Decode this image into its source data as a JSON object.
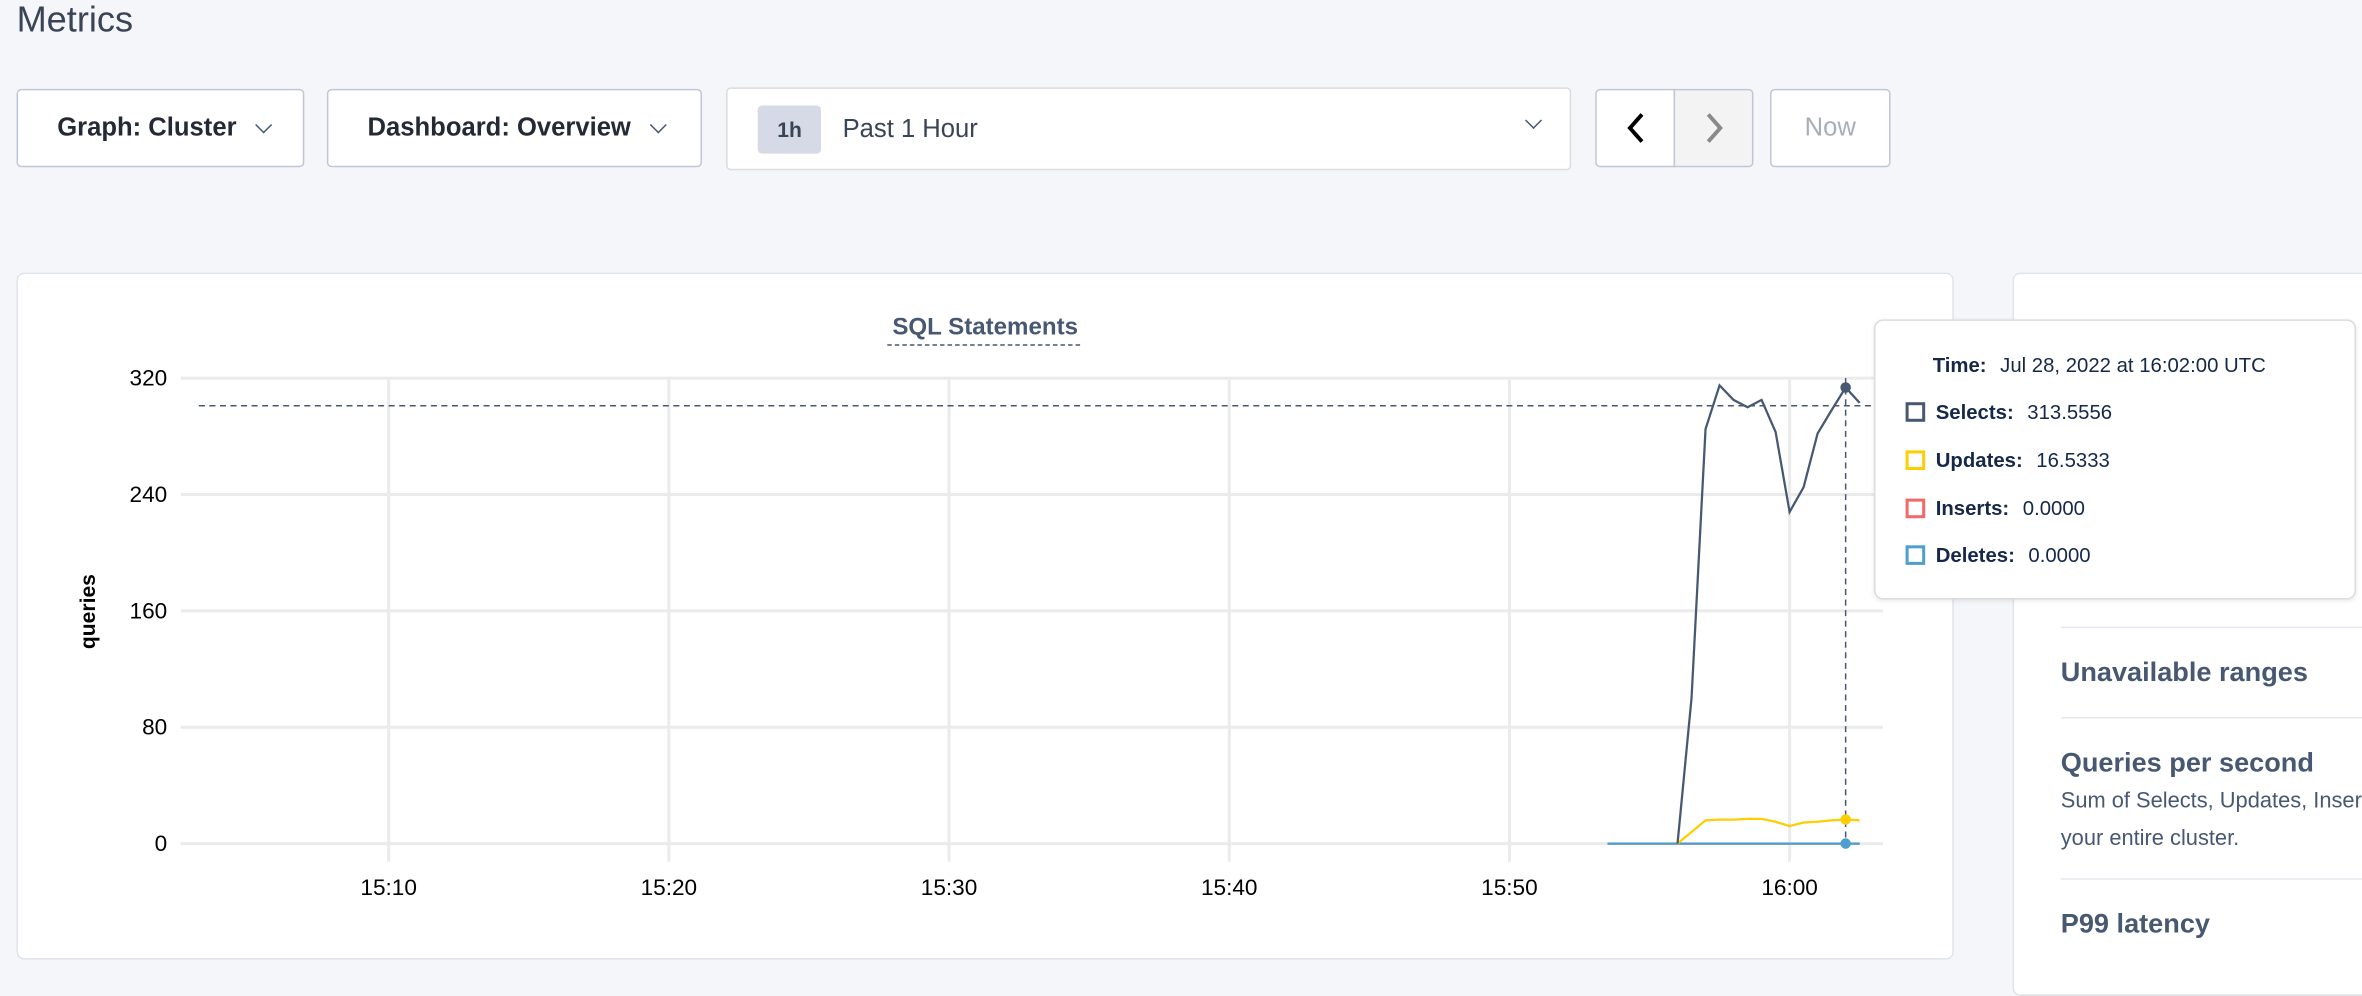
{
  "page": {
    "title": "Metrics"
  },
  "toolbar": {
    "graph_label": "Graph: Cluster",
    "dashboard_label": "Dashboard: Overview",
    "time_badge": "1h",
    "time_label": "Past 1 Hour",
    "prev_icon": "chevron-left-icon",
    "next_icon": "chevron-right-icon",
    "now_label": "Now"
  },
  "chart_data": {
    "type": "line",
    "title": "SQL Statements",
    "ylabel": "queries",
    "xlabel": "",
    "ylim": [
      0,
      320
    ],
    "yticks": [
      "0",
      "80",
      "160",
      "240",
      "320"
    ],
    "xticks": [
      "15:10",
      "15:20",
      "15:30",
      "15:40",
      "15:50",
      "16:00"
    ],
    "grid": true,
    "x": [
      "15:56:00",
      "15:56:30",
      "15:57:00",
      "15:57:30",
      "15:58:00",
      "15:58:30",
      "15:59:00",
      "15:59:30",
      "16:00:00",
      "16:00:30",
      "16:01:00",
      "16:01:30",
      "16:02:00",
      "16:02:30"
    ],
    "series": [
      {
        "name": "Selects",
        "color": "#475872",
        "values": [
          0,
          100,
          285,
          315,
          305,
          300,
          305,
          283,
          228,
          245,
          282,
          298,
          313.5556,
          303
        ]
      },
      {
        "name": "Updates",
        "color": "#ffcd02",
        "values": [
          0,
          8,
          16,
          16.5,
          16.5,
          17,
          17,
          15,
          12,
          14.5,
          15,
          16,
          16.5333,
          16
        ]
      },
      {
        "name": "Inserts",
        "color": "#f16969",
        "values": [
          0,
          0,
          0,
          0,
          0,
          0,
          0,
          0,
          0,
          0,
          0,
          0,
          0,
          0
        ]
      },
      {
        "name": "Deletes",
        "color": "#4e9fd1",
        "values": [
          0,
          0,
          0,
          0,
          0,
          0,
          0,
          0,
          0,
          0,
          0,
          0,
          0,
          0
        ]
      }
    ],
    "deletes_start": "15:53:30",
    "hover": {
      "x": "16:02:00",
      "y_crosshair": 301
    }
  },
  "tooltip": {
    "time_label": "Time:",
    "time_value": "Jul 28, 2022 at 16:02:00 UTC",
    "rows": [
      {
        "label": "Selects:",
        "value": "313.5556",
        "color": "#475872"
      },
      {
        "label": "Updates:",
        "value": "16.5333",
        "color": "#ffcd02"
      },
      {
        "label": "Inserts:",
        "value": "0.0000",
        "color": "#f16969"
      },
      {
        "label": "Deletes:",
        "value": "0.0000",
        "color": "#4e9fd1"
      }
    ]
  },
  "summary": {
    "items": [
      {
        "title": "Unavailable ranges"
      },
      {
        "title": "Queries per second",
        "desc1": "Sum of Selects, Updates, Inser",
        "desc2": "your entire cluster."
      },
      {
        "title": "P99 latency"
      }
    ]
  }
}
